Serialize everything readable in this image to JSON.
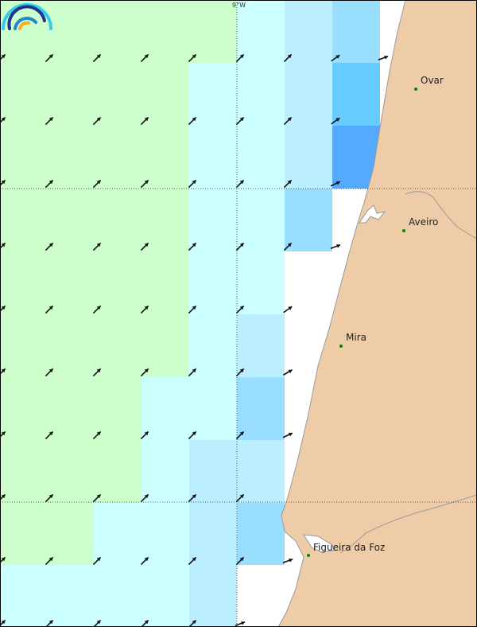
{
  "map": {
    "longitude_label": "9°W",
    "palette": {
      "G": "#ccffcc",
      "C": "#ccffff",
      "L": "#bbeeff",
      "M": "#99ddff",
      "D": "#66ccff",
      "E": "#55aaff",
      "W": "#ffffff",
      "land": "#eecca8",
      "coast": "#999999",
      "arrow": "#111111",
      "city_dot": "#008800"
    },
    "cells": [
      "GGGGGCLMW",
      "GGGGCCLDW",
      "GGGGCCLEW",
      "GGGGCCMWW",
      "GGGGCCWWW",
      "GGGGCLWWW",
      "GGGCCMWWW",
      "GGGCLLWWW",
      "GGCCLMWWW",
      "CCCCLWWWW"
    ],
    "wind_direction_deg": [
      [
        45,
        45,
        45,
        45,
        45,
        45,
        45,
        35,
        20
      ],
      [
        45,
        45,
        45,
        45,
        45,
        45,
        45,
        35,
        null
      ],
      [
        45,
        45,
        45,
        45,
        45,
        45,
        45,
        25,
        null
      ],
      [
        45,
        45,
        45,
        45,
        45,
        45,
        45,
        20,
        null
      ],
      [
        45,
        45,
        45,
        45,
        45,
        45,
        35,
        null,
        null
      ],
      [
        45,
        45,
        45,
        45,
        45,
        45,
        30,
        null,
        null
      ],
      [
        45,
        45,
        45,
        45,
        45,
        45,
        25,
        null,
        null
      ],
      [
        45,
        45,
        45,
        45,
        45,
        45,
        null,
        null,
        null
      ],
      [
        45,
        45,
        45,
        45,
        45,
        45,
        20,
        null,
        null
      ],
      [
        45,
        45,
        45,
        45,
        45,
        20,
        null,
        null,
        null
      ]
    ],
    "cities": [
      {
        "name": "Ovar"
      },
      {
        "name": "Aveiro"
      },
      {
        "name": "Mira"
      },
      {
        "name": "Figueira da Foz"
      }
    ]
  }
}
